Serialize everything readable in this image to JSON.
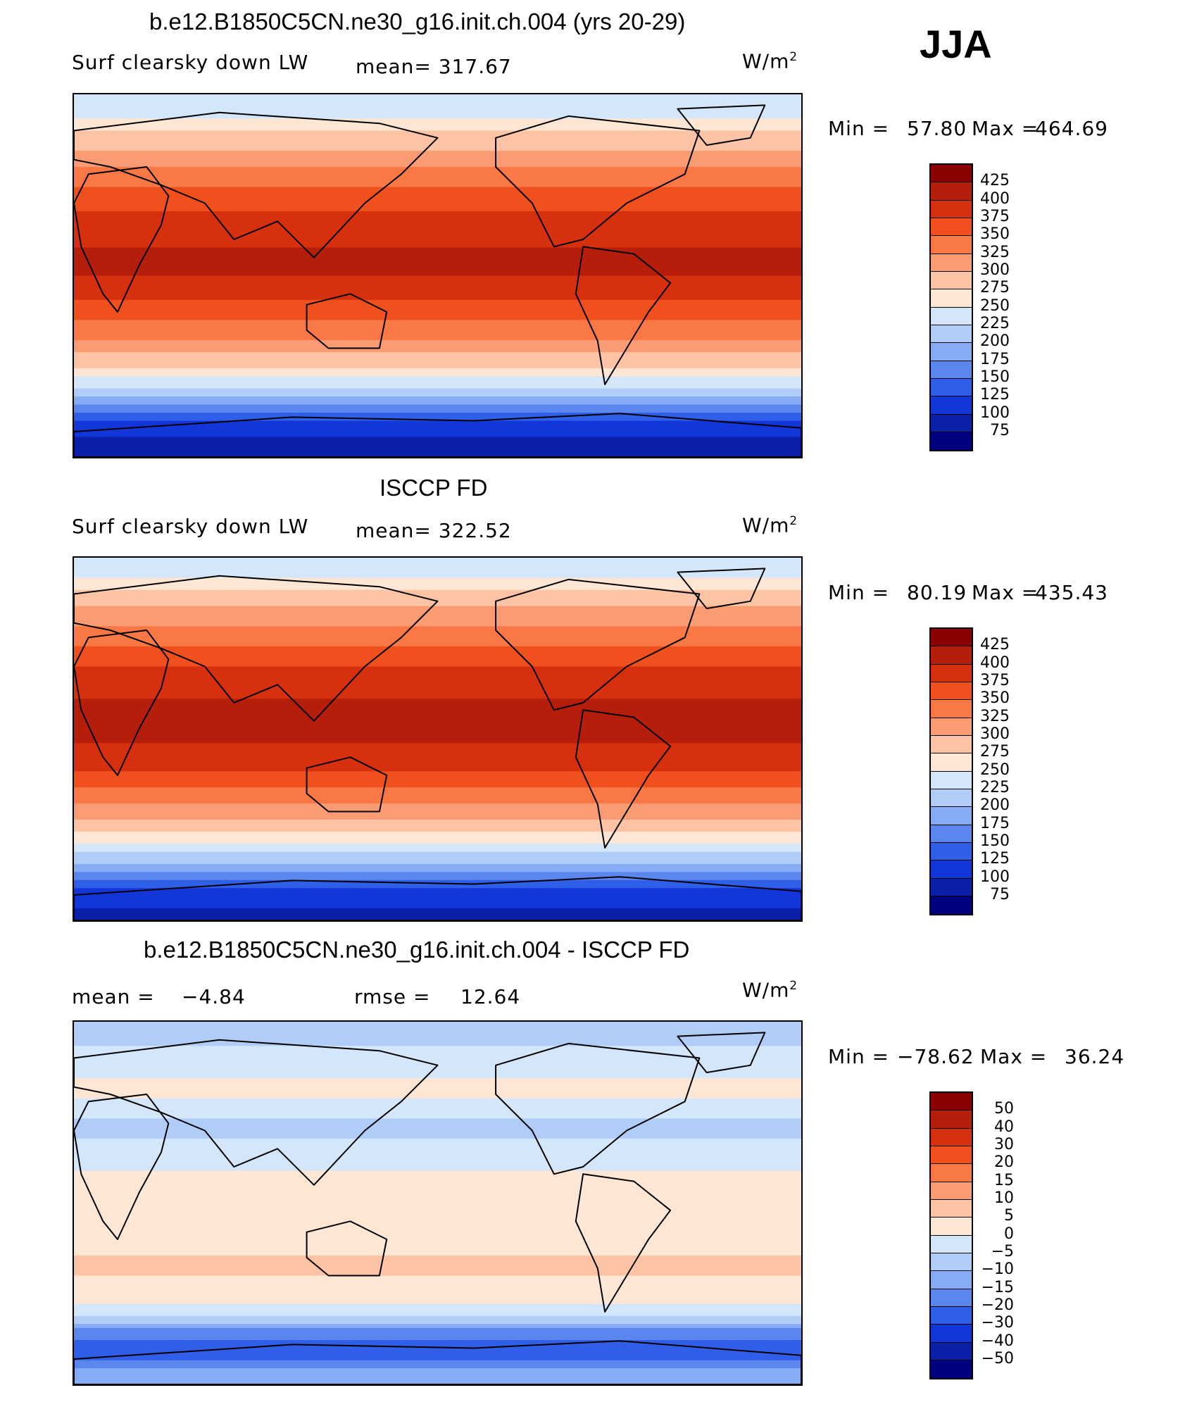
{
  "season": "JJA",
  "units_main": "W/m",
  "units_sup": "2",
  "panels": {
    "p1": {
      "title": "b.e12.B1850C5CN.ne30_g16.init.ch.004 (yrs 20-29)",
      "variable": "Surf clearsky down LW",
      "mean_label": "mean= 317.67",
      "min_label": "Min =",
      "min_value": "57.80",
      "max_label": "Max =",
      "max_value": "464.69"
    },
    "p2": {
      "title": "ISCCP FD",
      "variable": "Surf clearsky down LW",
      "mean_label": "mean= 322.52",
      "min_label": "Min =",
      "min_value": "80.19",
      "max_label": "Max =",
      "max_value": "435.43"
    },
    "p3": {
      "title": "b.e12.B1850C5CN.ne30_g16.init.ch.004 - ISCCP FD",
      "mean_label": "mean =",
      "mean_value": "−4.84",
      "rmse_label": "rmse =",
      "rmse_value": "12.64",
      "min_label": "Min =",
      "min_value": "−78.62",
      "max_label": "Max =",
      "max_value": "36.24"
    }
  },
  "chart_data": [
    {
      "type": "heatmap",
      "title": "b.e12.B1850C5CN.ne30_g16.init.ch.004 (yrs 20-29)",
      "variable": "Surf clearsky down LW",
      "units": "W/m2",
      "mean": 317.67,
      "min": 57.8,
      "max": 464.69,
      "colorbar_levels": [
        425,
        400,
        375,
        350,
        325,
        300,
        275,
        250,
        225,
        200,
        175,
        150,
        125,
        100,
        75
      ],
      "colorbar_labels": [
        "425",
        "400",
        "375",
        "350",
        "325",
        "300",
        "275",
        "250",
        "225",
        "200",
        "175",
        "150",
        "125",
        "100",
        "75"
      ],
      "colors": [
        "#8b0000",
        "#b41e0a",
        "#d7300e",
        "#f0501e",
        "#fa7846",
        "#fa9c73",
        "#fcc4a4",
        "#fde6d4",
        "#d4e6fa",
        "#b0cdf8",
        "#86acf5",
        "#5a86ee",
        "#2f5ee8",
        "#1236d8",
        "#0a20a8",
        "#000080"
      ],
      "zonal_profile": [
        {
          "lat": 85,
          "value": 225
        },
        {
          "lat": 70,
          "value": 280
        },
        {
          "lat": 55,
          "value": 320
        },
        {
          "lat": 40,
          "value": 360
        },
        {
          "lat": 25,
          "value": 385
        },
        {
          "lat": 10,
          "value": 405
        },
        {
          "lat": 0,
          "value": 400
        },
        {
          "lat": -15,
          "value": 370
        },
        {
          "lat": -30,
          "value": 330
        },
        {
          "lat": -45,
          "value": 275
        },
        {
          "lat": -55,
          "value": 230
        },
        {
          "lat": -65,
          "value": 170
        },
        {
          "lat": -75,
          "value": 110
        },
        {
          "lat": -85,
          "value": 85
        }
      ]
    },
    {
      "type": "heatmap",
      "title": "ISCCP FD",
      "variable": "Surf clearsky down LW",
      "units": "W/m2",
      "mean": 322.52,
      "min": 80.19,
      "max": 435.43,
      "colorbar_levels": [
        425,
        400,
        375,
        350,
        325,
        300,
        275,
        250,
        225,
        200,
        175,
        150,
        125,
        100,
        75
      ],
      "colorbar_labels": [
        "425",
        "400",
        "375",
        "350",
        "325",
        "300",
        "275",
        "250",
        "225",
        "200",
        "175",
        "150",
        "125",
        "100",
        "75"
      ],
      "colors": [
        "#8b0000",
        "#b41e0a",
        "#d7300e",
        "#f0501e",
        "#fa7846",
        "#fa9c73",
        "#fcc4a4",
        "#fde6d4",
        "#d4e6fa",
        "#b0cdf8",
        "#86acf5",
        "#5a86ee",
        "#2f5ee8",
        "#1236d8",
        "#0a20a8",
        "#000080"
      ],
      "zonal_profile": [
        {
          "lat": 85,
          "value": 235
        },
        {
          "lat": 70,
          "value": 290
        },
        {
          "lat": 55,
          "value": 325
        },
        {
          "lat": 40,
          "value": 365
        },
        {
          "lat": 25,
          "value": 395
        },
        {
          "lat": 10,
          "value": 410
        },
        {
          "lat": 0,
          "value": 405
        },
        {
          "lat": -15,
          "value": 375
        },
        {
          "lat": -30,
          "value": 335
        },
        {
          "lat": -45,
          "value": 280
        },
        {
          "lat": -55,
          "value": 235
        },
        {
          "lat": -65,
          "value": 180
        },
        {
          "lat": -75,
          "value": 120
        },
        {
          "lat": -85,
          "value": 95
        }
      ]
    },
    {
      "type": "heatmap",
      "title": "b.e12.B1850C5CN.ne30_g16.init.ch.004 - ISCCP FD",
      "units": "W/m2",
      "mean": -4.84,
      "rmse": 12.64,
      "min": -78.62,
      "max": 36.24,
      "colorbar_levels": [
        50,
        40,
        30,
        20,
        15,
        10,
        5,
        0,
        -5,
        -10,
        -15,
        -20,
        -30,
        -40,
        -50
      ],
      "colorbar_labels": [
        "50",
        "40",
        "30",
        "20",
        "15",
        "10",
        "5",
        "0",
        "−5",
        "−10",
        "−15",
        "−20",
        "−30",
        "−40",
        "−50"
      ],
      "colors": [
        "#8b0000",
        "#b41e0a",
        "#d7300e",
        "#f0501e",
        "#fa7846",
        "#fa9c73",
        "#fcc4a4",
        "#fde6d4",
        "#d4e6fa",
        "#b0cdf8",
        "#86acf5",
        "#5a86ee",
        "#2f5ee8",
        "#1236d8",
        "#0a20a8",
        "#000080"
      ],
      "zonal_profile": [
        {
          "lat": 85,
          "value": -8
        },
        {
          "lat": 70,
          "value": -2
        },
        {
          "lat": 55,
          "value": 2
        },
        {
          "lat": 40,
          "value": -6
        },
        {
          "lat": 25,
          "value": -4
        },
        {
          "lat": 10,
          "value": 3
        },
        {
          "lat": 0,
          "value": 4
        },
        {
          "lat": -15,
          "value": 2
        },
        {
          "lat": -30,
          "value": 6
        },
        {
          "lat": -45,
          "value": 3
        },
        {
          "lat": -55,
          "value": -4
        },
        {
          "lat": -65,
          "value": -18
        },
        {
          "lat": -75,
          "value": -25
        },
        {
          "lat": -85,
          "value": -12
        }
      ]
    }
  ]
}
